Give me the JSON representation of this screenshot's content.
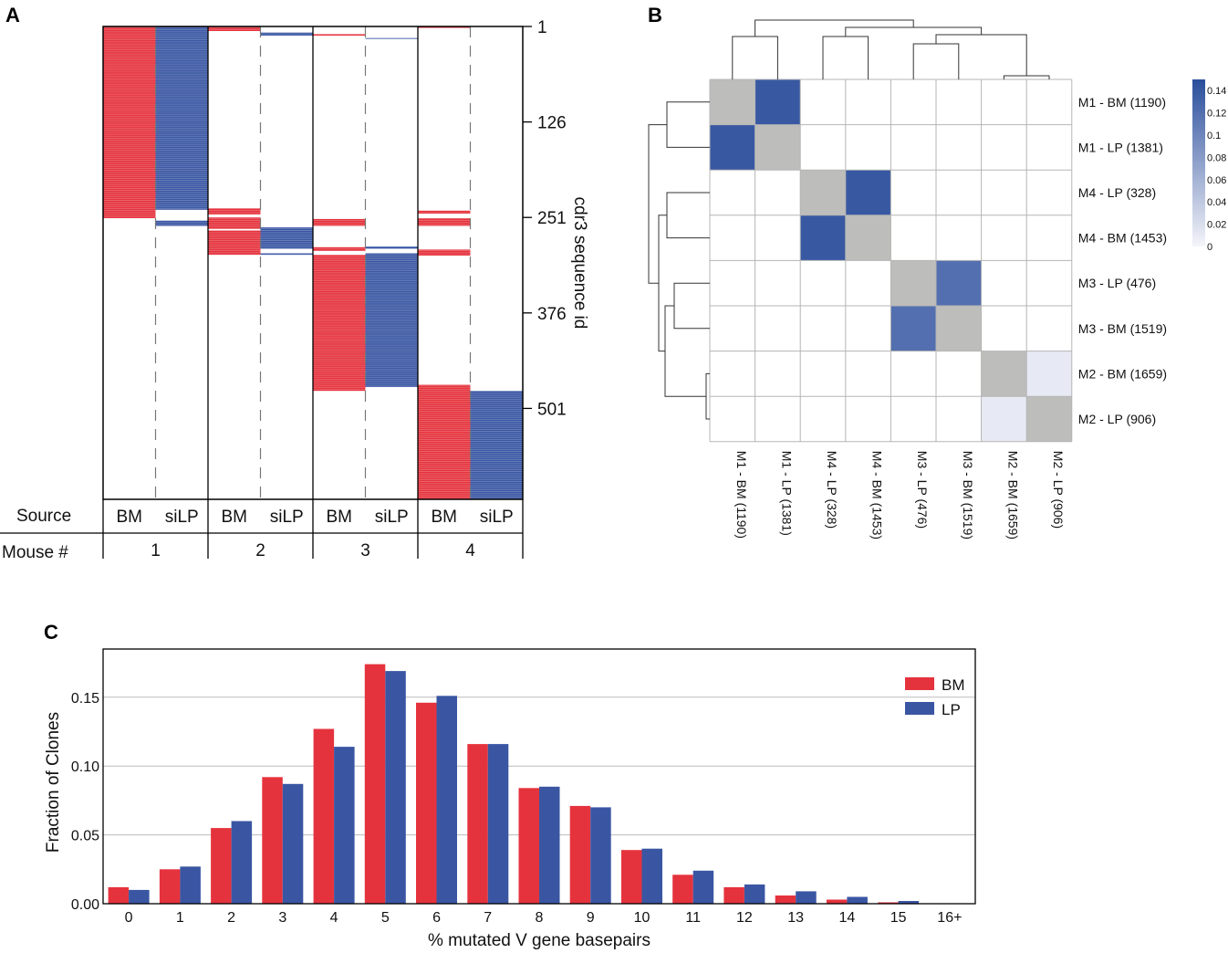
{
  "panels": {
    "a": "A",
    "b": "B",
    "c": "C"
  },
  "colors": {
    "bm": "#e5333d",
    "lp": "#3a56a3",
    "gray": "#bdbdbb"
  },
  "chart_data": [
    {
      "type": "heatmap",
      "name": "panel-a-clone-sharing",
      "ylabel": "cdr3 sequence id",
      "y_ticks": [
        "1",
        "126",
        "251",
        "376",
        "501"
      ],
      "ylim": [
        1,
        620
      ],
      "row_labels": [
        "Source",
        "Mouse #"
      ],
      "columns": [
        {
          "source": "BM",
          "mouse": "1"
        },
        {
          "source": "siLP",
          "mouse": "1"
        },
        {
          "source": "BM",
          "mouse": "2"
        },
        {
          "source": "siLP",
          "mouse": "2"
        },
        {
          "source": "BM",
          "mouse": "3"
        },
        {
          "source": "siLP",
          "mouse": "3"
        },
        {
          "source": "BM",
          "mouse": "4"
        },
        {
          "source": "siLP",
          "mouse": "4"
        }
      ],
      "mice": [
        "1",
        "2",
        "3",
        "4"
      ],
      "blocks": [
        {
          "col": 0,
          "from": 1,
          "to": 252
        },
        {
          "col": 1,
          "from": 1,
          "to": 241
        },
        {
          "col": 1,
          "from": 255,
          "to": 262
        },
        {
          "col": 2,
          "from": 1,
          "to": 7
        },
        {
          "col": 2,
          "from": 239,
          "to": 247
        },
        {
          "col": 2,
          "from": 251,
          "to": 266
        },
        {
          "col": 2,
          "from": 268,
          "to": 300
        },
        {
          "col": 3,
          "from": 9,
          "to": 13
        },
        {
          "col": 3,
          "from": 264,
          "to": 292
        },
        {
          "col": 3,
          "from": 298,
          "to": 300
        },
        {
          "col": 4,
          "from": 11,
          "to": 13
        },
        {
          "col": 4,
          "from": 253,
          "to": 262
        },
        {
          "col": 4,
          "from": 290,
          "to": 295
        },
        {
          "col": 4,
          "from": 300,
          "to": 478
        },
        {
          "col": 5,
          "from": 16,
          "to": 17
        },
        {
          "col": 5,
          "from": 289,
          "to": 292
        },
        {
          "col": 5,
          "from": 298,
          "to": 473
        },
        {
          "col": 6,
          "from": 1,
          "to": 3
        },
        {
          "col": 6,
          "from": 242,
          "to": 246
        },
        {
          "col": 6,
          "from": 252,
          "to": 262
        },
        {
          "col": 6,
          "from": 293,
          "to": 301
        },
        {
          "col": 6,
          "from": 470,
          "to": 620
        },
        {
          "col": 7,
          "from": 478,
          "to": 620
        }
      ]
    },
    {
      "type": "heatmap",
      "name": "panel-b-overlap-matrix",
      "labels": [
        "M1 - BM (1190)",
        "M1 - LP (1381)",
        "M4 - LP (328)",
        "M4 - BM (1453)",
        "M3 - LP (476)",
        "M3 - BM (1519)",
        "M2 - BM (1659)",
        "M2 - LP (906)"
      ],
      "pairs": [
        {
          "row": 0,
          "col": 1,
          "value": 0.14
        },
        {
          "row": 1,
          "col": 0,
          "value": 0.14
        },
        {
          "row": 2,
          "col": 3,
          "value": 0.14
        },
        {
          "row": 3,
          "col": 2,
          "value": 0.14
        },
        {
          "row": 4,
          "col": 5,
          "value": 0.12
        },
        {
          "row": 5,
          "col": 4,
          "value": 0.12
        },
        {
          "row": 6,
          "col": 7,
          "value": 0.01
        },
        {
          "row": 7,
          "col": 6,
          "value": 0.01
        }
      ],
      "colorbar_ticks": [
        "0.14",
        "0.12",
        "0.1",
        "0.08",
        "0.06",
        "0.04",
        "0.02",
        "0"
      ],
      "colorbar_range": [
        0,
        0.15
      ],
      "diagonal": "gray",
      "dendrogram": "hierarchical clustering on rows and columns"
    },
    {
      "type": "bar",
      "name": "panel-c-mutation-histogram",
      "title": "",
      "xlabel": "% mutated V gene basepairs",
      "ylabel": "Fraction of Clones",
      "categories": [
        "0",
        "1",
        "2",
        "3",
        "4",
        "5",
        "6",
        "7",
        "8",
        "9",
        "10",
        "11",
        "12",
        "13",
        "14",
        "15",
        "16+"
      ],
      "series": [
        {
          "name": "BM",
          "values": [
            0.012,
            0.025,
            0.055,
            0.092,
            0.127,
            0.174,
            0.146,
            0.116,
            0.084,
            0.071,
            0.039,
            0.021,
            0.012,
            0.006,
            0.003,
            0.001,
            0.0
          ]
        },
        {
          "name": "LP",
          "values": [
            0.01,
            0.027,
            0.06,
            0.087,
            0.114,
            0.169,
            0.151,
            0.116,
            0.085,
            0.07,
            0.04,
            0.024,
            0.014,
            0.009,
            0.005,
            0.002,
            0.0
          ]
        }
      ],
      "y_ticks": [
        "0.00",
        "0.05",
        "0.10",
        "0.15"
      ],
      "ylim": [
        0,
        0.185
      ],
      "grid": true,
      "legend": "top-right"
    }
  ]
}
